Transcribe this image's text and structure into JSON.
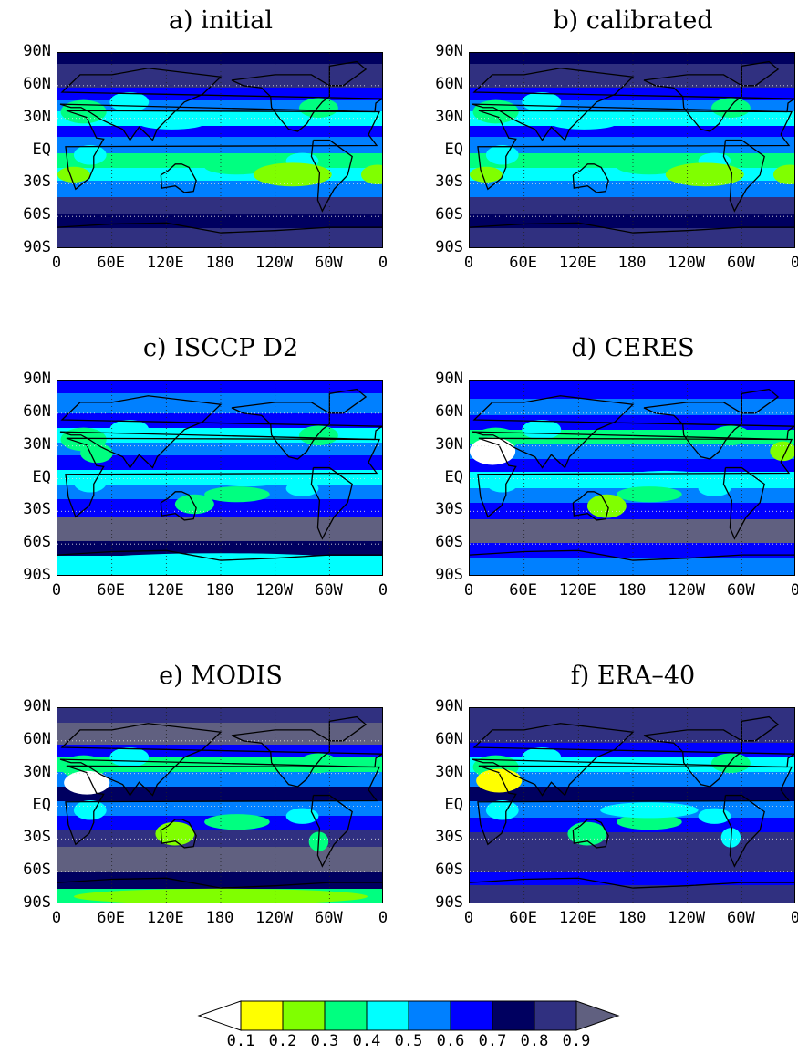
{
  "panels": [
    {
      "title": "a) initial",
      "type": "sub"
    },
    {
      "title": "b) calibrated",
      "type": "sub"
    },
    {
      "title": "c) ISCCP D2",
      "type": "obs"
    },
    {
      "title": "d) CERES",
      "type": "obs2"
    },
    {
      "title": "e) MODIS",
      "type": "modis"
    },
    {
      "title": "f) ERA–40",
      "type": "era"
    }
  ],
  "axes": {
    "y_ticks": [
      "90N",
      "60N",
      "30N",
      "EQ",
      "30S",
      "60S",
      "90S"
    ],
    "x_ticks": [
      "0",
      "60E",
      "120E",
      "180",
      "120W",
      "60W",
      "0"
    ]
  },
  "colorbar": {
    "levels": [
      "0.1",
      "0.2",
      "0.3",
      "0.4",
      "0.5",
      "0.6",
      "0.7",
      "0.8",
      "0.9"
    ],
    "colors": [
      "#ffffff",
      "#ffff00",
      "#80ff00",
      "#00ff80",
      "#00ffff",
      "#0080ff",
      "#0000ff",
      "#000060",
      "#303080",
      "#606080"
    ]
  }
}
